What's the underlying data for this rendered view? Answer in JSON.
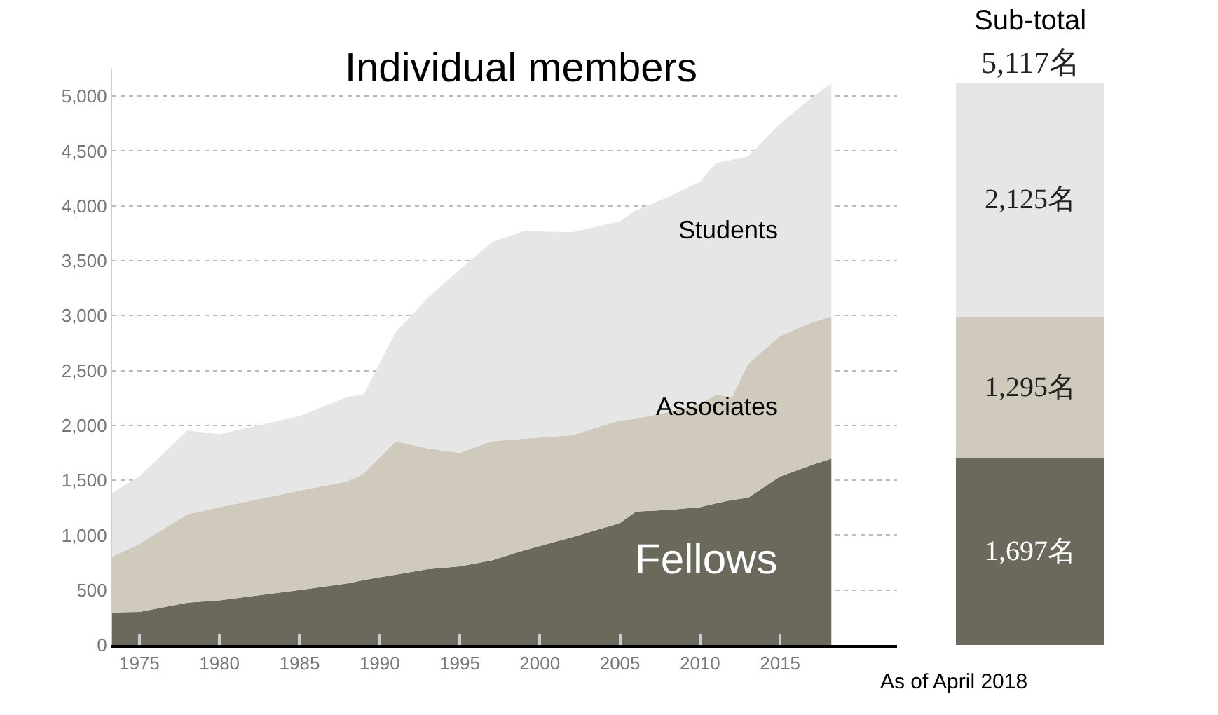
{
  "chart_data": [
    {
      "type": "area",
      "title": "Individual members",
      "stacked": true,
      "x": [
        1973.3,
        1975,
        1978,
        1980,
        1985,
        1988,
        1989,
        1991,
        1993,
        1995,
        1997,
        1999,
        2002,
        2005,
        2006,
        2008,
        2010,
        2011,
        2012,
        2013,
        2015,
        2017,
        2018.2
      ],
      "series": [
        {
          "name": "Fellows",
          "color": "#6b685c",
          "values": [
            295,
            300,
            385,
            405,
            500,
            560,
            590,
            640,
            690,
            715,
            770,
            860,
            980,
            1110,
            1215,
            1230,
            1255,
            1290,
            1320,
            1340,
            1535,
            1640,
            1697
          ]
        },
        {
          "name": "Associates",
          "color": "#d0cabd",
          "values": [
            510,
            620,
            805,
            850,
            905,
            930,
            970,
            1215,
            1100,
            1035,
            1085,
            1020,
            930,
            935,
            845,
            890,
            940,
            990,
            940,
            1220,
            1280,
            1300,
            1295
          ]
        },
        {
          "name": "Students",
          "color": "#e6e6e6",
          "values": [
            580,
            615,
            765,
            665,
            680,
            770,
            720,
            995,
            1370,
            1670,
            1815,
            1890,
            1850,
            1815,
            1900,
            1960,
            2025,
            2110,
            2160,
            1890,
            1935,
            2050,
            2125
          ]
        }
      ],
      "xlim": [
        1973.3,
        2022.3
      ],
      "xticks": [
        1975,
        1980,
        1985,
        1990,
        1995,
        2000,
        2005,
        2010,
        2015
      ],
      "ylim": [
        0,
        5250
      ],
      "yticks": [
        0,
        500,
        {
          "value": 1000,
          "label": "1,000"
        },
        {
          "value": 1500,
          "label": "1,500"
        },
        {
          "value": 2000,
          "label": "2,000"
        },
        {
          "value": 2500,
          "label": "2,500"
        },
        {
          "value": 3000,
          "label": "3,000"
        },
        {
          "value": 3500,
          "label": "3,500"
        },
        {
          "value": 4000,
          "label": "4,000"
        },
        {
          "value": 4500,
          "label": "4,500"
        },
        {
          "value": 5000,
          "label": "5,000"
        }
      ],
      "grid": "y",
      "marker": "none"
    },
    {
      "type": "bar",
      "title": "Sub-total",
      "stacked": true,
      "categories": [
        null
      ],
      "series": [
        {
          "color": "#6b685c",
          "values": [
            1697
          ],
          "value_labels": [
            "1,697名"
          ]
        },
        {
          "color": "#d0cabd",
          "values": [
            1295
          ],
          "value_labels": [
            "1,295名"
          ]
        },
        {
          "color": "#e6e6e6",
          "values": [
            2125
          ],
          "value_labels": [
            "2,125名"
          ]
        }
      ],
      "totals": [
        "5,117名"
      ],
      "tick_labels": false,
      "annotations": [
        "As of April 2018"
      ]
    }
  ]
}
